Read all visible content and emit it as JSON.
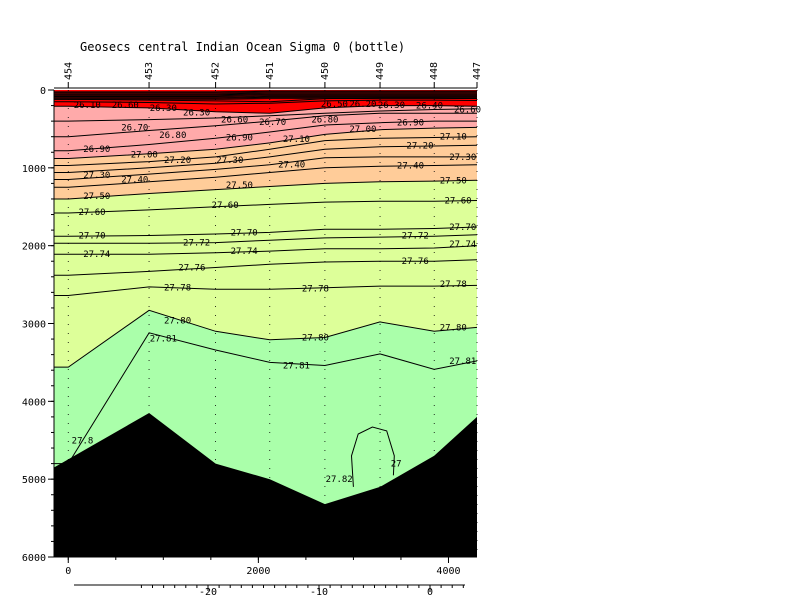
{
  "chart_data": {
    "type": "contour",
    "title": "Geosecs central Indian Ocean Sigma 0 (bottle)",
    "x_distance_ticks": [
      0,
      2000,
      4000
    ],
    "x_distance_range": [
      -150,
      4300
    ],
    "x_latitude_ticks": [
      -20,
      -10,
      0
    ],
    "y_depth_ticks": [
      0,
      1000,
      2000,
      3000,
      4000,
      5000,
      6000
    ],
    "y_depth_range": [
      0,
      6000
    ],
    "stations": [
      {
        "label": "454",
        "distance": 0
      },
      {
        "label": "453",
        "distance": 850
      },
      {
        "label": "452",
        "distance": 1550
      },
      {
        "label": "451",
        "distance": 2120
      },
      {
        "label": "450",
        "distance": 2700
      },
      {
        "label": "449",
        "distance": 3280
      },
      {
        "label": "448",
        "distance": 3850
      },
      {
        "label": "447",
        "distance": 4300
      }
    ],
    "bottom_profile": [
      {
        "distance": -150,
        "depth": 4850
      },
      {
        "distance": 850,
        "depth": 4150
      },
      {
        "distance": 1550,
        "depth": 4800
      },
      {
        "distance": 2120,
        "depth": 5000
      },
      {
        "distance": 2700,
        "depth": 5320
      },
      {
        "distance": 3280,
        "depth": 5100
      },
      {
        "distance": 3850,
        "depth": 4700
      },
      {
        "distance": 4300,
        "depth": 4200
      }
    ],
    "contour_levels": [
      {
        "level": "26.10",
        "depths": [
          120,
          130,
          140,
          150,
          110,
          100,
          100,
          105
        ]
      },
      {
        "level": "26.30",
        "depths": [
          150,
          160,
          180,
          170,
          140,
          130,
          130,
          135
        ]
      },
      {
        "level": "26.60",
        "depths": [
          210,
          230,
          280,
          300,
          230,
          200,
          200,
          210
        ]
      },
      {
        "level": "26.70",
        "depths": [
          400,
          380,
          360,
          330,
          300,
          270,
          250,
          240
        ]
      },
      {
        "level": "26.80",
        "depths": [
          600,
          520,
          460,
          400,
          330,
          300,
          300,
          300
        ]
      },
      {
        "level": "26.90",
        "depths": [
          780,
          700,
          620,
          540,
          450,
          420,
          400,
          400
        ]
      },
      {
        "level": "27.00",
        "depths": [
          880,
          820,
          760,
          680,
          570,
          510,
          490,
          480
        ]
      },
      {
        "level": "27.10",
        "depths": [
          970,
          920,
          860,
          760,
          650,
          620,
          610,
          600
        ]
      },
      {
        "level": "27.20",
        "depths": [
          1060,
          1000,
          940,
          860,
          760,
          730,
          720,
          710
        ]
      },
      {
        "level": "27.30",
        "depths": [
          1150,
          1080,
          1020,
          960,
          870,
          860,
          860,
          860
        ]
      },
      {
        "level": "27.40",
        "depths": [
          1250,
          1180,
          1120,
          1060,
          1000,
          980,
          970,
          960
        ]
      },
      {
        "level": "27.50",
        "depths": [
          1400,
          1330,
          1280,
          1240,
          1200,
          1180,
          1170,
          1160
        ]
      },
      {
        "level": "27.60",
        "depths": [
          1580,
          1540,
          1500,
          1470,
          1440,
          1430,
          1430,
          1420
        ]
      },
      {
        "level": "27.70",
        "depths": [
          1880,
          1870,
          1850,
          1830,
          1790,
          1790,
          1780,
          1760
        ]
      },
      {
        "level": "27.72",
        "depths": [
          1970,
          1970,
          1960,
          1930,
          1900,
          1890,
          1880,
          1860
        ]
      },
      {
        "level": "27.74",
        "depths": [
          2110,
          2110,
          2090,
          2070,
          2040,
          2040,
          2030,
          2000
        ]
      },
      {
        "level": "27.76",
        "depths": [
          2380,
          2330,
          2280,
          2240,
          2210,
          2200,
          2200,
          2180
        ]
      },
      {
        "level": "27.78",
        "depths": [
          2640,
          2530,
          2560,
          2560,
          2540,
          2520,
          2520,
          2510
        ]
      },
      {
        "level": "27.80",
        "depths": [
          3560,
          2830,
          3100,
          3210,
          3180,
          2980,
          3100,
          3050
        ]
      },
      {
        "level": "27.81",
        "depths": [
          4800,
          3120,
          3340,
          3500,
          3540,
          3390,
          3590,
          3480
        ]
      }
    ],
    "contour_label_positions": [
      {
        "level": "26.10",
        "distance": 200,
        "depth": 190
      },
      {
        "level": "26.60",
        "distance": 600,
        "depth": 190
      },
      {
        "level": "26.30",
        "distance": 1000,
        "depth": 230
      },
      {
        "level": "26.30",
        "distance": 1350,
        "depth": 290
      },
      {
        "level": "26.60",
        "distance": 1750,
        "depth": 380
      },
      {
        "level": "26.70",
        "distance": 2150,
        "depth": 410
      },
      {
        "level": "26.50",
        "distance": 2800,
        "depth": 180
      },
      {
        "level": "26.20",
        "distance": 3100,
        "depth": 180
      },
      {
        "level": "26.30",
        "distance": 3400,
        "depth": 190
      },
      {
        "level": "26.40",
        "distance": 3800,
        "depth": 200
      },
      {
        "level": "26.60",
        "distance": 4200,
        "depth": 250
      },
      {
        "level": "26.70",
        "distance": 700,
        "depth": 480
      },
      {
        "level": "26.80",
        "distance": 1100,
        "depth": 580
      },
      {
        "level": "26.80",
        "distance": 2700,
        "depth": 380
      },
      {
        "level": "26.90",
        "distance": 1800,
        "depth": 610
      },
      {
        "level": "26.90",
        "distance": 3600,
        "depth": 420
      },
      {
        "level": "27.00",
        "distance": 3100,
        "depth": 500
      },
      {
        "level": "26.90",
        "distance": 300,
        "depth": 760
      },
      {
        "level": "27.00",
        "distance": 800,
        "depth": 830
      },
      {
        "level": "27.10",
        "distance": 2400,
        "depth": 630
      },
      {
        "level": "27.10",
        "distance": 4050,
        "depth": 600
      },
      {
        "level": "27.20",
        "distance": 1150,
        "depth": 900
      },
      {
        "level": "27.20",
        "distance": 3700,
        "depth": 710
      },
      {
        "level": "27.30",
        "distance": 1700,
        "depth": 900
      },
      {
        "level": "27.40",
        "distance": 2350,
        "depth": 960
      },
      {
        "level": "27.40",
        "distance": 3600,
        "depth": 970
      },
      {
        "level": "27.30",
        "distance": 4150,
        "depth": 860
      },
      {
        "level": "27.30",
        "distance": 300,
        "depth": 1090
      },
      {
        "level": "27.40",
        "distance": 700,
        "depth": 1150
      },
      {
        "level": "27.50",
        "distance": 1800,
        "depth": 1220
      },
      {
        "level": "27.50",
        "distance": 4050,
        "depth": 1160
      },
      {
        "level": "27.50",
        "distance": 300,
        "depth": 1360
      },
      {
        "level": "27.60",
        "distance": 1650,
        "depth": 1480
      },
      {
        "level": "27.60",
        "distance": 4100,
        "depth": 1420
      },
      {
        "level": "27.60",
        "distance": 250,
        "depth": 1570
      },
      {
        "level": "27.70",
        "distance": 250,
        "depth": 1870
      },
      {
        "level": "27.70",
        "distance": 1850,
        "depth": 1830
      },
      {
        "level": "27.72",
        "distance": 3650,
        "depth": 1870
      },
      {
        "level": "27.70",
        "distance": 4150,
        "depth": 1760
      },
      {
        "level": "27.72",
        "distance": 1350,
        "depth": 1960
      },
      {
        "level": "27.74",
        "distance": 4150,
        "depth": 1980
      },
      {
        "level": "27.74",
        "distance": 300,
        "depth": 2110
      },
      {
        "level": "27.74",
        "distance": 1850,
        "depth": 2070
      },
      {
        "level": "27.76",
        "distance": 3650,
        "depth": 2200
      },
      {
        "level": "27.76",
        "distance": 1300,
        "depth": 2280
      },
      {
        "level": "27.78",
        "distance": 1150,
        "depth": 2540
      },
      {
        "level": "27.78",
        "distance": 2600,
        "depth": 2550
      },
      {
        "level": "27.78",
        "distance": 4050,
        "depth": 2490
      },
      {
        "level": "27.80",
        "distance": 1150,
        "depth": 2960
      },
      {
        "level": "27.80",
        "distance": 2600,
        "depth": 3180
      },
      {
        "level": "27.80",
        "distance": 4050,
        "depth": 3050
      },
      {
        "level": "27.81",
        "distance": 1000,
        "depth": 3190
      },
      {
        "level": "27.81",
        "distance": 2400,
        "depth": 3540
      },
      {
        "level": "27.81",
        "distance": 4150,
        "depth": 3480
      },
      {
        "level": "27.82",
        "distance": 2850,
        "depth": 5000
      }
    ],
    "partial_labels": [
      {
        "text": "27.8",
        "distance": 150,
        "depth": 4500
      },
      {
        "text": "27",
        "distance": 3450,
        "depth": 4800
      }
    ],
    "inner_closed_contour_level": "27.82",
    "colors": {
      "above_26_60": "#ff0000",
      "26_60_to_27_00": "#ffaaaa",
      "27_00_to_27_50": "#ffcc99",
      "27_50_to_27_80": "#ddff99",
      "below_27_80": "#aaffaa",
      "bottom": "#000000",
      "contour_line": "#000000"
    }
  }
}
